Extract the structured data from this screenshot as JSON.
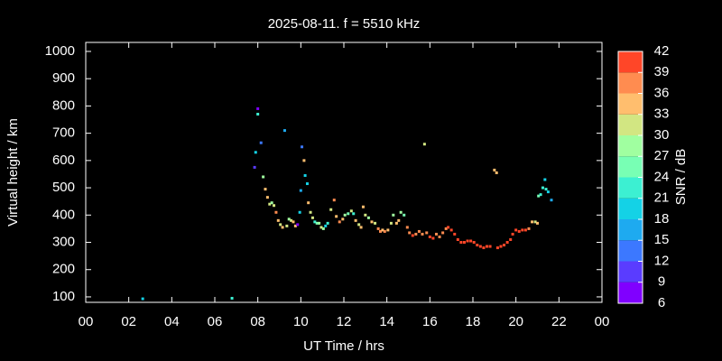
{
  "chart_data": {
    "type": "scatter",
    "title": "2025-08-11. f = 5510 kHz",
    "xlabel": "UT Time / hrs",
    "ylabel": "Virtual height / km",
    "xlim": [
      0,
      24
    ],
    "xticks": [
      {
        "value": 0,
        "label": "00"
      },
      {
        "value": 2,
        "label": "02"
      },
      {
        "value": 4,
        "label": "04"
      },
      {
        "value": 6,
        "label": "06"
      },
      {
        "value": 8,
        "label": "08"
      },
      10,
      12,
      14,
      16,
      18,
      20,
      22,
      {
        "value": 24,
        "label": "00"
      }
    ],
    "ylim": [
      80,
      1033
    ],
    "yticks": [
      100,
      200,
      300,
      400,
      500,
      600,
      700,
      800,
      900,
      1000
    ],
    "colorbar": {
      "label": "SNR / dB",
      "lim": [
        6,
        42
      ],
      "ticks": [
        6,
        9,
        12,
        15,
        18,
        21,
        24,
        27,
        30,
        33,
        36,
        39,
        42
      ],
      "colors": [
        "#8000ff",
        "#5a3cff",
        "#3c78ff",
        "#1eaaf0",
        "#14d2e6",
        "#3cf0d2",
        "#78ffb4",
        "#a0ffa0",
        "#d2e682",
        "#ffbe6e",
        "#ff8c50",
        "#ff4628"
      ]
    },
    "series": [
      {
        "x": [
          2.65,
          6.8,
          7.85,
          7.9,
          8.0,
          8.0,
          8.15,
          8.25,
          8.35,
          8.45,
          8.55,
          8.65,
          8.75,
          8.85,
          8.95,
          9.05,
          9.15,
          9.25,
          9.35,
          9.45,
          9.55,
          9.65,
          9.75,
          9.85,
          9.95,
          10.0,
          10.05,
          10.15,
          10.2,
          10.3,
          10.35,
          10.45,
          10.55,
          10.65,
          10.75,
          10.85,
          10.95,
          11.05,
          11.15,
          11.25,
          11.4,
          11.55,
          11.65,
          11.8,
          11.95,
          12.05,
          12.2,
          12.35,
          12.45,
          12.55,
          12.7,
          12.8,
          12.9,
          13.0,
          13.15,
          13.3,
          13.45,
          13.6,
          13.7,
          13.8,
          13.9,
          14.05,
          14.2,
          14.3,
          14.45,
          14.55,
          14.65,
          14.8,
          14.95,
          15.05,
          15.2,
          15.35,
          15.5,
          15.65,
          15.75,
          15.85,
          16.0,
          16.15,
          16.3,
          16.45,
          16.6,
          16.75,
          16.85,
          17.0,
          17.15,
          17.3,
          17.45,
          17.6,
          17.75,
          17.9,
          18.05,
          18.2,
          18.35,
          18.5,
          18.65,
          18.8,
          19.0,
          19.1,
          19.15,
          19.3,
          19.45,
          19.6,
          19.75,
          19.85,
          20.0,
          20.15,
          20.3,
          20.45,
          20.6,
          20.75,
          20.9,
          21.0,
          21.05,
          21.15,
          21.25,
          21.35,
          21.4,
          21.5,
          21.65
        ],
        "y": [
          93,
          95,
          575,
          630,
          770,
          790,
          665,
          540,
          495,
          465,
          440,
          445,
          435,
          410,
          380,
          365,
          355,
          710,
          360,
          385,
          380,
          375,
          360,
          365,
          410,
          490,
          650,
          600,
          545,
          515,
          445,
          410,
          390,
          375,
          370,
          370,
          355,
          350,
          360,
          370,
          420,
          455,
          395,
          375,
          385,
          400,
          405,
          415,
          405,
          380,
          365,
          355,
          430,
          400,
          390,
          375,
          370,
          350,
          340,
          345,
          340,
          345,
          370,
          400,
          370,
          380,
          410,
          400,
          355,
          335,
          325,
          330,
          340,
          330,
          660,
          335,
          320,
          315,
          330,
          320,
          335,
          350,
          355,
          345,
          330,
          310,
          300,
          300,
          305,
          305,
          300,
          290,
          285,
          280,
          285,
          285,
          565,
          555,
          280,
          285,
          290,
          300,
          310,
          330,
          345,
          340,
          345,
          345,
          350,
          375,
          375,
          370,
          470,
          475,
          500,
          530,
          495,
          485,
          455
        ],
        "snr": [
          21,
          24,
          12,
          21,
          24,
          9,
          15,
          30,
          36,
          36,
          33,
          30,
          33,
          39,
          36,
          33,
          36,
          18,
          33,
          30,
          33,
          36,
          36,
          9,
          21,
          18,
          15,
          36,
          21,
          21,
          36,
          33,
          33,
          24,
          27,
          30,
          33,
          30,
          21,
          24,
          33,
          39,
          36,
          39,
          36,
          30,
          27,
          33,
          24,
          36,
          33,
          36,
          36,
          33,
          30,
          36,
          33,
          39,
          39,
          36,
          39,
          36,
          33,
          30,
          36,
          36,
          30,
          27,
          39,
          39,
          42,
          39,
          39,
          39,
          33,
          39,
          42,
          42,
          39,
          39,
          39,
          39,
          42,
          42,
          42,
          42,
          42,
          42,
          42,
          42,
          42,
          42,
          42,
          42,
          42,
          42,
          36,
          36,
          42,
          42,
          42,
          42,
          42,
          42,
          42,
          42,
          42,
          42,
          39,
          36,
          33,
          36,
          27,
          24,
          24,
          21,
          24,
          21,
          18
        ]
      }
    ]
  }
}
